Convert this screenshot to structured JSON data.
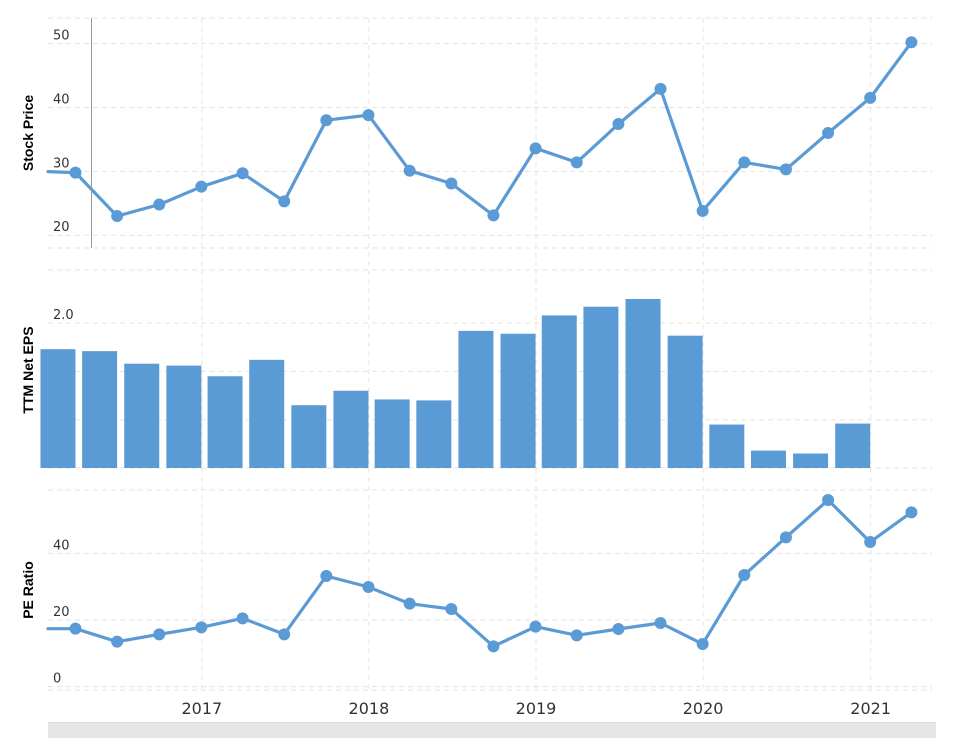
{
  "chart_data": [
    {
      "type": "line",
      "ylabel": "Stock Price",
      "ylim": [
        18,
        54
      ],
      "yticks": [
        20,
        30,
        40,
        50
      ],
      "color": "#5b9bd5",
      "x": [
        "2016-03-31",
        "2016-06-30",
        "2016-09-30",
        "2016-12-31",
        "2017-03-31",
        "2017-06-30",
        "2017-09-30",
        "2017-12-31",
        "2018-03-31",
        "2018-06-30",
        "2018-09-30",
        "2018-12-31",
        "2019-03-31",
        "2019-06-30",
        "2019-09-30",
        "2019-12-31",
        "2020-03-31",
        "2020-06-30",
        "2020-09-30",
        "2020-12-31",
        "2021-03-31"
      ],
      "values": [
        29.8,
        23.0,
        24.8,
        27.6,
        29.7,
        25.3,
        38.0,
        38.8,
        30.1,
        28.1,
        23.1,
        33.6,
        31.4,
        37.4,
        42.9,
        23.8,
        31.4,
        30.3,
        36.0,
        41.5,
        50.2
      ]
    },
    {
      "type": "bar",
      "ylabel": "TTM Net EPS",
      "ylim": [
        0.5,
        2.55
      ],
      "yticks": [
        "0.5",
        "1.0",
        "1.5",
        "2.0"
      ],
      "color": "#5b9bd5",
      "x": [
        "2016-03-31",
        "2016-06-30",
        "2016-09-30",
        "2016-12-31",
        "2017-03-31",
        "2017-06-30",
        "2017-09-30",
        "2017-12-31",
        "2018-03-31",
        "2018-06-30",
        "2018-09-30",
        "2018-12-31",
        "2019-03-31",
        "2019-06-30",
        "2019-09-30",
        "2019-12-31",
        "2020-03-31",
        "2020-06-30",
        "2020-09-30",
        "2020-12-31"
      ],
      "values": [
        1.73,
        1.71,
        1.58,
        1.56,
        1.45,
        1.62,
        1.15,
        1.3,
        1.21,
        1.2,
        1.92,
        1.89,
        2.08,
        2.17,
        2.25,
        1.87,
        0.95,
        0.68,
        0.65,
        0.96
      ]
    },
    {
      "type": "line",
      "ylabel": "PE Ratio",
      "ylim": [
        -1,
        59
      ],
      "yticks": [
        0,
        20,
        40
      ],
      "color": "#5b9bd5",
      "x": [
        "2016-03-31",
        "2016-06-30",
        "2016-09-30",
        "2016-12-31",
        "2017-03-31",
        "2017-06-30",
        "2017-09-30",
        "2017-12-31",
        "2018-03-31",
        "2018-06-30",
        "2018-09-30",
        "2018-12-31",
        "2019-03-31",
        "2019-06-30",
        "2019-09-30",
        "2019-12-31",
        "2020-03-31",
        "2020-06-30",
        "2020-09-30",
        "2020-12-31",
        "2021-03-31"
      ],
      "values": [
        17.4,
        13.5,
        15.7,
        17.8,
        20.5,
        15.7,
        33.2,
        29.9,
        24.9,
        23.3,
        12.1,
        18.0,
        15.4,
        17.3,
        19.1,
        12.8,
        33.5,
        44.8,
        56.0,
        43.4,
        52.3
      ]
    }
  ],
  "x_axis": {
    "tick_labels": [
      "2017",
      "2018",
      "2019",
      "2020",
      "2021"
    ],
    "tick_dates": [
      "2017-01-01",
      "2018-01-01",
      "2019-01-01",
      "2020-01-01",
      "2021-01-01"
    ],
    "range": [
      "2016-01-31",
      "2021-05-15"
    ]
  }
}
